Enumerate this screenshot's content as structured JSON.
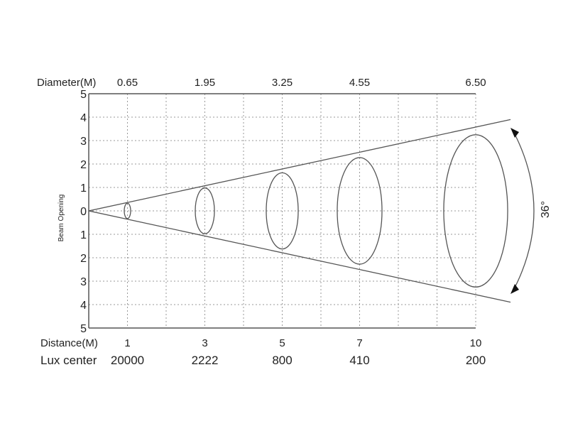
{
  "diagram": {
    "type": "beam-angle",
    "beam_angle_label": "36°",
    "beam_angle_deg": 36,
    "y_axis_label": "Beam Opening",
    "y_ticks_top": [
      "5",
      "4",
      "3",
      "2",
      "1",
      "0"
    ],
    "y_ticks_bottom": [
      "1",
      "2",
      "3",
      "4",
      "5"
    ],
    "y_range": [
      -5,
      5
    ],
    "x_range": [
      0,
      10
    ],
    "grid": true,
    "diameter_label": "Diameter(M)",
    "distance_label": "Distance(M)",
    "lux_label": "Lux center",
    "points": [
      {
        "distance": 1,
        "distance_label": "1",
        "diameter": 0.65,
        "diameter_label": "0.65",
        "lux": 20000,
        "lux_label": "20000"
      },
      {
        "distance": 3,
        "distance_label": "3",
        "diameter": 1.95,
        "diameter_label": "1.95",
        "lux": 2222,
        "lux_label": "2222"
      },
      {
        "distance": 5,
        "distance_label": "5",
        "diameter": 3.25,
        "diameter_label": "3.25",
        "lux": 800,
        "lux_label": "800"
      },
      {
        "distance": 7,
        "distance_label": "7",
        "diameter": 4.55,
        "diameter_label": "4.55",
        "lux": 410,
        "lux_label": "410"
      },
      {
        "distance": 10,
        "distance_label": "10",
        "diameter": 6.5,
        "diameter_label": "6.50",
        "lux": 200,
        "lux_label": "200"
      }
    ],
    "colors": {
      "line": "#555555",
      "grid": "#999999",
      "text": "#222222"
    }
  }
}
